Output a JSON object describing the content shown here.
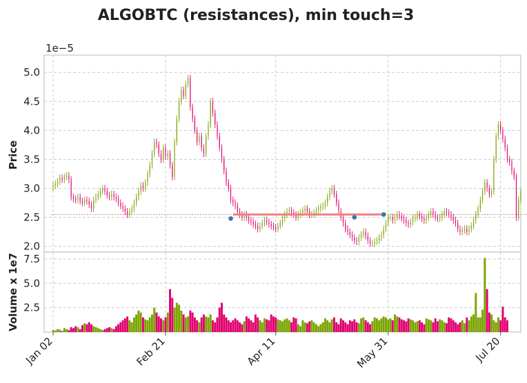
{
  "chart_data": {
    "type": "candlestick",
    "title": "ALGOBTC (resistances), min touch=3",
    "price_panel": {
      "ylabel": "Price",
      "scale_label": "1e−5",
      "ylim": [
        1.9,
        5.3
      ],
      "yticks": [
        2.0,
        2.5,
        3.0,
        3.5,
        4.0,
        4.5,
        5.0
      ],
      "ytick_labels": [
        "2.0",
        "2.5",
        "3.0",
        "3.5",
        "4.0",
        "4.5",
        "5.0"
      ],
      "grid": true
    },
    "volume_panel": {
      "ylabel": "Volume x 1e7",
      "ylim": [
        0,
        8.2
      ],
      "yticks": [
        2.5,
        5.0,
        7.5
      ],
      "ytick_labels": [
        "2.5",
        "5.0",
        "7.5"
      ],
      "grid": true
    },
    "xlim": [
      -4,
      208
    ],
    "x_ticks": [
      {
        "day": 0,
        "label": "Jan 02"
      },
      {
        "day": 50,
        "label": "Feb 21"
      },
      {
        "day": 99,
        "label": "Apr 11"
      },
      {
        "day": 149,
        "label": "May 31"
      },
      {
        "day": 199,
        "label": "Jul 20"
      }
    ],
    "up_color": "#7aa300",
    "down_color": "#e0006f",
    "price_close_1e5": [
      3.05,
      3.08,
      3.12,
      3.18,
      3.15,
      3.2,
      3.22,
      3.15,
      2.85,
      2.82,
      2.8,
      2.85,
      2.78,
      2.75,
      2.8,
      2.78,
      2.72,
      2.65,
      2.8,
      2.85,
      2.9,
      2.95,
      3.0,
      2.95,
      2.88,
      2.85,
      2.9,
      2.85,
      2.82,
      2.75,
      2.7,
      2.65,
      2.6,
      2.55,
      2.6,
      2.65,
      2.75,
      2.85,
      2.95,
      3.05,
      3.0,
      3.1,
      3.25,
      3.4,
      3.6,
      3.8,
      3.75,
      3.6,
      3.5,
      3.7,
      3.55,
      3.6,
      3.4,
      3.2,
      3.8,
      4.2,
      4.5,
      4.7,
      4.6,
      4.8,
      4.9,
      4.4,
      4.2,
      4.0,
      3.8,
      3.9,
      3.7,
      3.6,
      3.9,
      4.1,
      4.5,
      4.3,
      4.1,
      3.9,
      3.7,
      3.5,
      3.3,
      3.1,
      3.0,
      2.8,
      2.75,
      2.7,
      2.6,
      2.55,
      2.5,
      2.55,
      2.5,
      2.45,
      2.42,
      2.38,
      2.35,
      2.3,
      2.35,
      2.4,
      2.45,
      2.42,
      2.38,
      2.35,
      2.33,
      2.3,
      2.35,
      2.4,
      2.48,
      2.55,
      2.6,
      2.62,
      2.58,
      2.55,
      2.5,
      2.55,
      2.58,
      2.62,
      2.65,
      2.6,
      2.55,
      2.55,
      2.58,
      2.62,
      2.65,
      2.68,
      2.7,
      2.75,
      2.85,
      2.95,
      3.0,
      2.9,
      2.75,
      2.6,
      2.5,
      2.4,
      2.3,
      2.25,
      2.2,
      2.15,
      2.1,
      2.08,
      2.15,
      2.2,
      2.25,
      2.18,
      2.1,
      2.05,
      2.05,
      2.08,
      2.1,
      2.15,
      2.2,
      2.3,
      2.4,
      2.5,
      2.5,
      2.45,
      2.5,
      2.55,
      2.52,
      2.48,
      2.45,
      2.4,
      2.38,
      2.42,
      2.48,
      2.5,
      2.55,
      2.52,
      2.48,
      2.45,
      2.5,
      2.55,
      2.6,
      2.55,
      2.5,
      2.48,
      2.5,
      2.55,
      2.6,
      2.58,
      2.55,
      2.5,
      2.45,
      2.4,
      2.3,
      2.25,
      2.28,
      2.3,
      2.25,
      2.3,
      2.35,
      2.45,
      2.55,
      2.65,
      2.8,
      2.95,
      3.1,
      3.0,
      2.9,
      2.95,
      3.5,
      3.9,
      4.1,
      4.0,
      3.85,
      3.7,
      3.5,
      3.45,
      3.3,
      3.2,
      2.5,
      2.8,
      2.95
    ],
    "volume_1e7": [
      0.2,
      0.15,
      0.3,
      0.25,
      0.1,
      0.4,
      0.3,
      0.2,
      0.5,
      0.4,
      0.6,
      0.5,
      0.3,
      0.7,
      0.9,
      0.8,
      1.0,
      0.8,
      0.6,
      0.5,
      0.4,
      0.3,
      0.2,
      0.3,
      0.4,
      0.5,
      0.4,
      0.3,
      0.6,
      0.8,
      1.0,
      1.2,
      1.4,
      1.6,
      1.2,
      1.0,
      1.5,
      1.8,
      2.2,
      2.0,
      1.5,
      1.3,
      1.2,
      1.5,
      1.8,
      2.5,
      2.0,
      1.6,
      1.4,
      1.2,
      1.5,
      2.0,
      4.4,
      3.5,
      2.5,
      3.0,
      2.8,
      2.2,
      1.8,
      1.5,
      1.6,
      2.2,
      2.0,
      1.5,
      1.2,
      1.0,
      1.5,
      1.8,
      1.6,
      1.5,
      1.8,
      1.2,
      1.0,
      1.5,
      2.5,
      3.0,
      1.8,
      1.5,
      1.2,
      1.0,
      1.2,
      1.4,
      1.2,
      1.0,
      0.8,
      1.1,
      1.6,
      1.4,
      1.2,
      1.0,
      1.8,
      1.5,
      1.2,
      1.0,
      1.4,
      1.3,
      1.2,
      1.8,
      1.6,
      1.5,
      1.3,
      1.2,
      1.1,
      1.3,
      1.4,
      1.2,
      1.0,
      1.5,
      1.4,
      0.8,
      0.6,
      1.2,
      1.0,
      0.9,
      1.1,
      1.2,
      1.0,
      0.8,
      0.6,
      0.8,
      1.0,
      1.4,
      1.2,
      1.0,
      1.3,
      1.5,
      1.0,
      0.8,
      1.4,
      1.2,
      1.0,
      0.8,
      1.2,
      1.1,
      1.3,
      1.0,
      0.9,
      1.4,
      1.5,
      1.2,
      1.0,
      0.8,
      1.1,
      1.5,
      1.4,
      1.2,
      1.4,
      1.6,
      1.5,
      1.3,
      1.4,
      1.2,
      1.8,
      1.6,
      1.5,
      1.3,
      1.2,
      1.1,
      1.4,
      1.3,
      1.2,
      1.0,
      1.1,
      1.2,
      1.0,
      0.8,
      1.4,
      1.3,
      1.2,
      1.0,
      1.4,
      1.1,
      1.3,
      1.2,
      1.0,
      0.9,
      1.5,
      1.4,
      1.2,
      1.0,
      0.8,
      1.0,
      1.2,
      0.9,
      1.5,
      1.2,
      1.6,
      1.8,
      4.0,
      1.5,
      1.5,
      2.3,
      7.6,
      4.4,
      2.0,
      1.8,
      1.2,
      1.0,
      1.5,
      1.2,
      2.6,
      1.5,
      1.2
    ],
    "resistance": {
      "level_1e5": 2.55,
      "x_start": 80,
      "x_end": 211,
      "color": "#c97a84"
    },
    "resistance_segment": {
      "x_start": 80,
      "x_end": 146,
      "color": "#f08080"
    },
    "touch_points": [
      {
        "day": 79,
        "price_1e5": 2.48
      },
      {
        "day": 134,
        "price_1e5": 2.5
      },
      {
        "day": 147,
        "price_1e5": 2.55
      }
    ]
  }
}
